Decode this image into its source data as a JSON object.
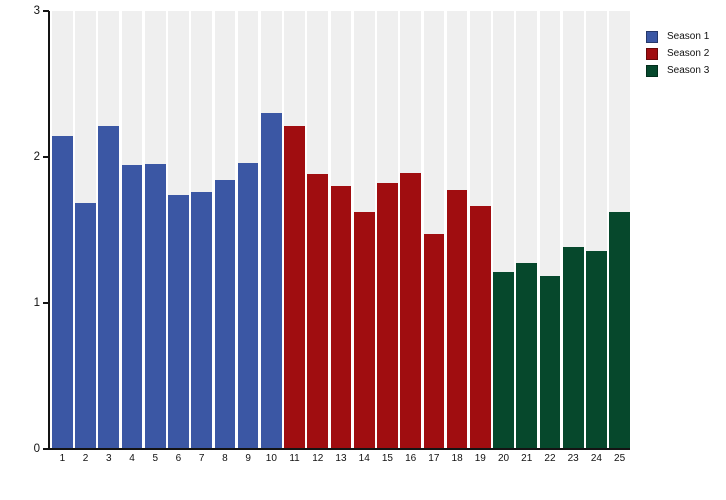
{
  "figure": {
    "background_color": "#ffffff",
    "band_color": "#efefef",
    "gap_color": "#ffffff",
    "axis_color": "#141414",
    "text_color": "#111111"
  },
  "chart_data": {
    "type": "bar",
    "title": "",
    "xlabel": "",
    "ylabel": "",
    "categories": [
      "1",
      "2",
      "3",
      "4",
      "5",
      "6",
      "7",
      "8",
      "9",
      "10",
      "11",
      "12",
      "13",
      "14",
      "15",
      "16",
      "17",
      "18",
      "19",
      "20",
      "21",
      "22",
      "23",
      "24",
      "25"
    ],
    "series": [
      {
        "name": "Season 1",
        "color": "#3b57a4",
        "categories": [
          "1",
          "2",
          "3",
          "4",
          "5",
          "6",
          "7",
          "8",
          "9",
          "10"
        ],
        "values": [
          2.14,
          1.68,
          2.21,
          1.94,
          1.95,
          1.74,
          1.76,
          1.84,
          1.96,
          2.3
        ]
      },
      {
        "name": "Season 2",
        "color": "#a00d10",
        "categories": [
          "11",
          "12",
          "13",
          "14",
          "15",
          "16",
          "17",
          "18",
          "19"
        ],
        "values": [
          2.21,
          1.88,
          1.8,
          1.62,
          1.82,
          1.89,
          1.47,
          1.77,
          1.66
        ]
      },
      {
        "name": "Season 3",
        "color": "#06482c",
        "categories": [
          "20",
          "21",
          "22",
          "23",
          "24",
          "25"
        ],
        "values": [
          1.21,
          1.27,
          1.18,
          1.38,
          1.35,
          1.62
        ]
      }
    ],
    "ylim": [
      0,
      3
    ],
    "yticks": [
      "0",
      "1",
      "2",
      "3"
    ],
    "grid": false,
    "legend_position": "top-right",
    "plot_style": "gray-column-bands-with-white-gaps"
  }
}
